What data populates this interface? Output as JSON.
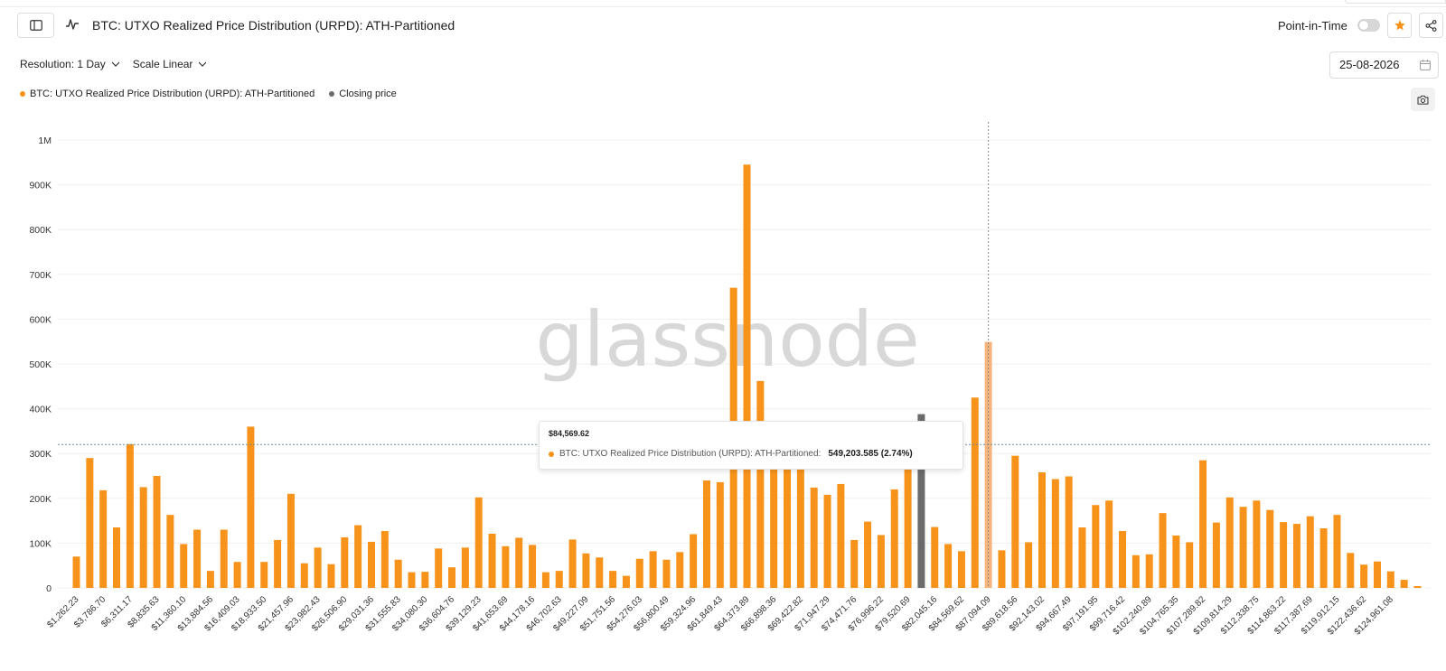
{
  "header": {
    "title": "BTC: UTXO Realized Price Distribution (URPD): ATH-Partitioned",
    "point_in_time_label": "Point-in-Time",
    "point_in_time_enabled": false,
    "star_active": true,
    "icons": {
      "sidebar": "sidebar-toggle-icon",
      "metric": "line-chart-icon",
      "star": "star-icon",
      "share": "share-icon",
      "calendar": "calendar-icon",
      "camera": "camera-icon"
    }
  },
  "controls": {
    "resolution_label": "Resolution: 1 Day",
    "scale_label": "Scale Linear",
    "date_value": "25-08-2026"
  },
  "legend": [
    {
      "label": "BTC: UTXO Realized Price Distribution (URPD): ATH-Partitioned",
      "color": "#f7931a"
    },
    {
      "label": "Closing price",
      "color": "#6b6b6b"
    }
  ],
  "watermark": "glassnode",
  "tooltip": {
    "date": "$84,569.62",
    "series_name": "BTC: UTXO Realized Price Distribution (URPD): ATH-Partitioned:",
    "value": "549,203.585 (2.74%)"
  },
  "colors": {
    "bar": "#f7931a",
    "bar_hover": "#f6b47d",
    "closing_bar": "#6b6b6b",
    "accent": "#f7931a"
  },
  "chart_data": {
    "type": "bar",
    "y_ticks": [
      "0",
      "100K",
      "200K",
      "300K",
      "400K",
      "500K",
      "600K",
      "700K",
      "800K",
      "900K",
      "1M"
    ],
    "ylim": [
      0,
      1000000
    ],
    "grid": true,
    "x_tick_labels": [
      "$1,262.23",
      "$3,786.70",
      "$6,311.17",
      "$8,835.63",
      "$11,360.10",
      "$13,884.56",
      "$16,409.03",
      "$18,933.50",
      "$21,457.96",
      "$23,982.43",
      "$26,506.90",
      "$29,031.36",
      "$31,555.83",
      "$34,080.30",
      "$36,604.76",
      "$39,129.23",
      "$41,653.69",
      "$44,178.16",
      "$46,702.63",
      "$49,227.09",
      "$51,751.56",
      "$54,276.03",
      "$56,800.49",
      "$59,324.96",
      "$61,849.43",
      "$64,373.89",
      "$66,898.36",
      "$69,422.82",
      "$71,947.29",
      "$74,471.76",
      "$76,996.22",
      "$79,520.69",
      "$82,045.16",
      "$84,569.62",
      "$87,094.09",
      "$89,618.56",
      "$92,143.02",
      "$94,667.49",
      "$97,191.95",
      "$99,716.42",
      "$102,240.89",
      "$104,765.35",
      "$107,289.82",
      "$109,814.29",
      "$112,338.75",
      "$114,863.22",
      "$117,387.69",
      "$119,912.15",
      "$122,436.62",
      "$124,961.08"
    ],
    "values": [
      70000,
      290000,
      218000,
      135000,
      321000,
      225000,
      250000,
      163000,
      98000,
      130000,
      38000,
      130000,
      58000,
      360000,
      58000,
      107000,
      210000,
      55000,
      90000,
      53000,
      113000,
      140000,
      103000,
      127000,
      63000,
      35000,
      36000,
      88000,
      46000,
      90000,
      202000,
      121000,
      93000,
      112000,
      96000,
      35000,
      38000,
      108000,
      77000,
      68000,
      38000,
      27000,
      65000,
      82000,
      63000,
      80000,
      120000,
      240000,
      236000,
      670000,
      945000,
      462000,
      330000,
      320000,
      270000,
      224000,
      208000,
      232000,
      107000,
      148000,
      118000,
      220000,
      270000,
      388000,
      136000,
      98000,
      82000,
      425000,
      549203.585,
      84000,
      295000,
      102000,
      258000,
      243000,
      249000,
      135000,
      185000,
      195000,
      127000,
      73000,
      75000,
      167000,
      117000,
      102000,
      285000,
      146000,
      202000,
      181000,
      195000,
      174000,
      147000,
      143000,
      160000,
      133000,
      163000,
      78000,
      52000,
      59000,
      37000,
      18000,
      4000
    ],
    "closing_price_index": 63,
    "hover_index": 68,
    "closing_price_level": 320000
  }
}
